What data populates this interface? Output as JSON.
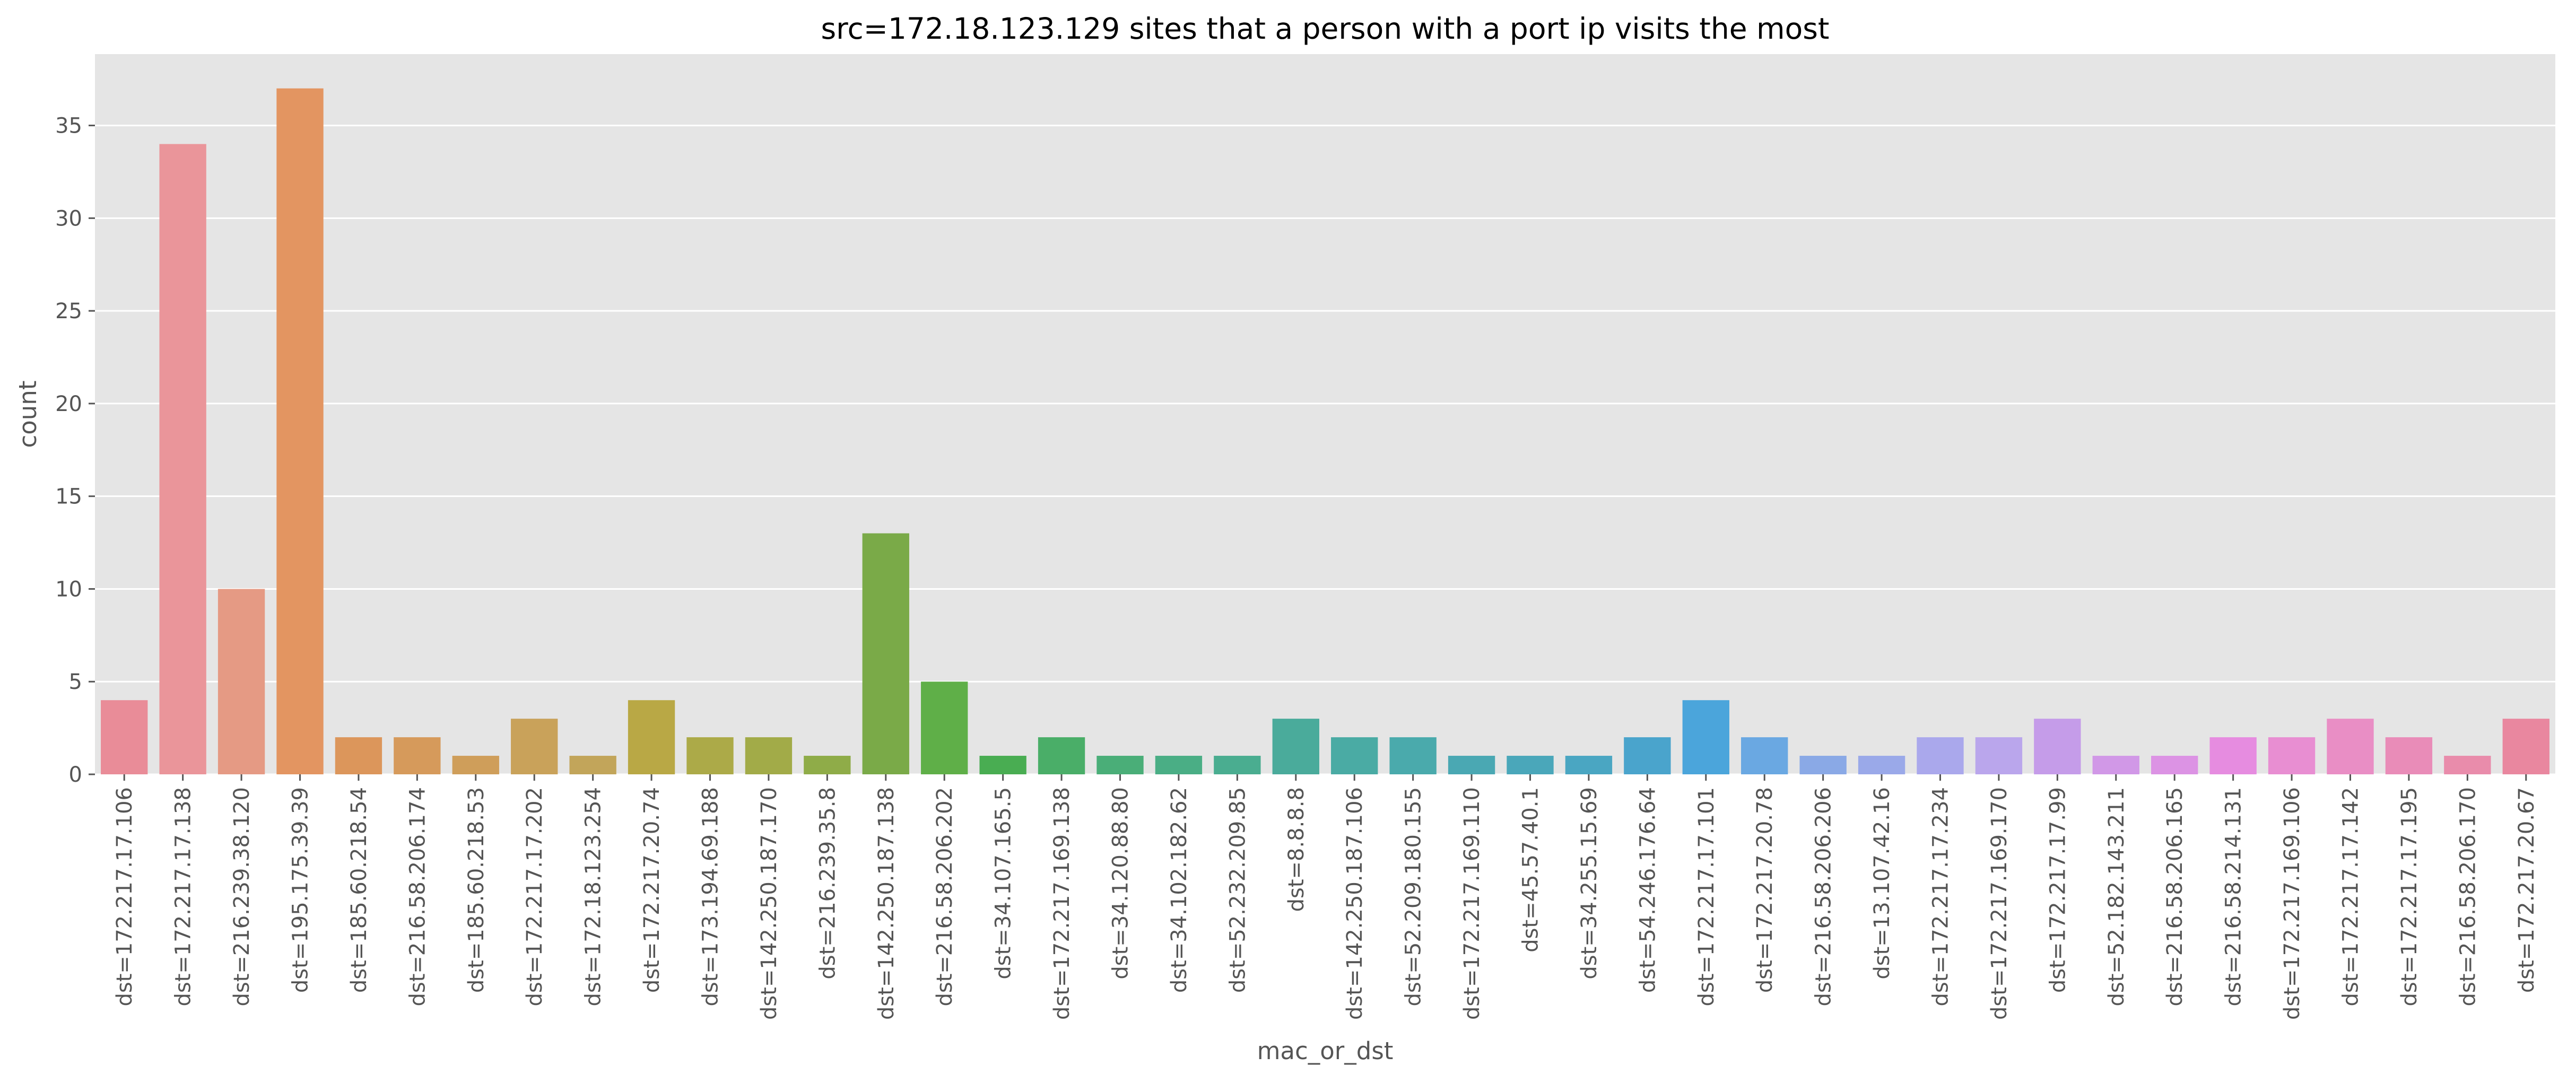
{
  "chart_data": {
    "type": "bar",
    "title": "src=172.18.123.129 sites that a person with a port ip visits the most",
    "xlabel": "mac_or_dst",
    "ylabel": "count",
    "ylim": [
      0,
      38.85
    ],
    "yticks": [
      0,
      5,
      10,
      15,
      20,
      25,
      30,
      35
    ],
    "grid": true,
    "categories": [
      "dst=172.217.17.106",
      "dst=172.217.17.138",
      "dst=216.239.38.120",
      "dst=195.175.39.39",
      "dst=185.60.218.54",
      "dst=216.58.206.174",
      "dst=185.60.218.53",
      "dst=172.217.17.202",
      "dst=172.18.123.254",
      "dst=172.217.20.74",
      "dst=173.194.69.188",
      "dst=142.250.187.170",
      "dst=216.239.35.8",
      "dst=142.250.187.138",
      "dst=216.58.206.202",
      "dst=34.107.165.5",
      "dst=172.217.169.138",
      "dst=34.120.88.80",
      "dst=34.102.182.62",
      "dst=52.232.209.85",
      "dst=8.8.8.8",
      "dst=142.250.187.106",
      "dst=52.209.180.155",
      "dst=172.217.169.110",
      "dst=45.57.40.1",
      "dst=34.255.15.69",
      "dst=54.246.176.64",
      "dst=172.217.17.101",
      "dst=172.217.20.78",
      "dst=216.58.206.206",
      "dst=13.107.42.16",
      "dst=172.217.17.234",
      "dst=172.217.169.170",
      "dst=172.217.17.99",
      "dst=52.182.143.211",
      "dst=216.58.206.165",
      "dst=216.58.214.131",
      "dst=172.217.169.106",
      "dst=172.217.17.142",
      "dst=172.217.17.195",
      "dst=216.58.206.170",
      "dst=172.217.20.67"
    ],
    "values": [
      4,
      34,
      10,
      37,
      2,
      2,
      1,
      3,
      1,
      4,
      2,
      2,
      1,
      13,
      5,
      1,
      2,
      1,
      1,
      1,
      3,
      2,
      2,
      1,
      1,
      1,
      2,
      4,
      2,
      1,
      1,
      2,
      2,
      3,
      1,
      1,
      2,
      2,
      3,
      2,
      1,
      3
    ],
    "colors": [
      "#e98c98",
      "#ea959a",
      "#e59a84",
      "#e39561",
      "#dc965b",
      "#d69a5b",
      "#cf9e5a",
      "#c9a25a",
      "#c2a55a",
      "#b9a845",
      "#acaa48",
      "#a2ab48",
      "#8fac48",
      "#7aaa48",
      "#5faf48",
      "#49ad52",
      "#4aae68",
      "#4aae78",
      "#4aae85",
      "#4aad90",
      "#4aab9b",
      "#4aaba4",
      "#4aaaac",
      "#4aa8b3",
      "#4aa7ba",
      "#4aa6c2",
      "#4aa4cc",
      "#4ba5db",
      "#6aa8e2",
      "#8aa9e6",
      "#9aa9e9",
      "#aaa8ec",
      "#baa6ec",
      "#c59ce9",
      "#d198e7",
      "#dc93e4",
      "#e68ce0",
      "#e88ed2",
      "#e98ec5",
      "#e98cb8",
      "#e98cab",
      "#e9879f"
    ],
    "background": "#e5e5e5",
    "gridline_color": "#ffffff"
  }
}
